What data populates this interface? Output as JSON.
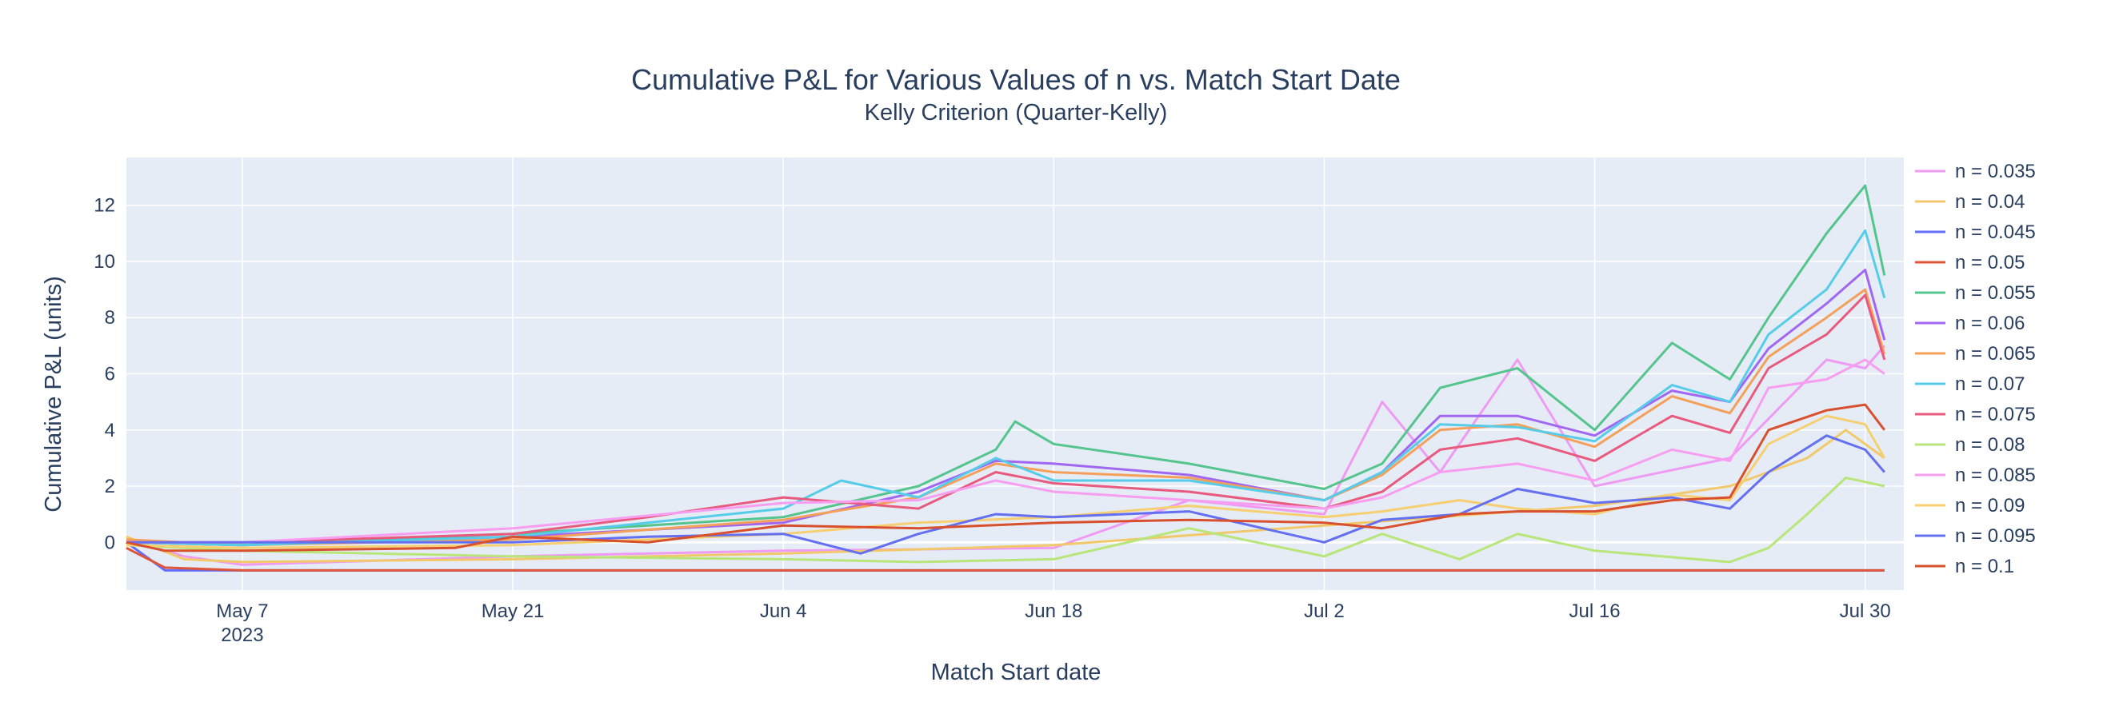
{
  "chart_data": {
    "type": "line",
    "title": "Cumulative P&L for Various Values of n vs. Match Start Date",
    "subtitle": "Kelly Criterion (Quarter-Kelly)",
    "xlabel": "Match Start date",
    "ylabel": "Cumulative P&L (units)",
    "x_range": [
      "2023-05-01",
      "2023-08-01"
    ],
    "ylim": [
      -1.7,
      13.7
    ],
    "x_ticks": [
      {
        "date": "2023-05-07",
        "label": "May 7",
        "sublabel": "2023"
      },
      {
        "date": "2023-05-21",
        "label": "May 21",
        "sublabel": ""
      },
      {
        "date": "2023-06-04",
        "label": "Jun 4",
        "sublabel": ""
      },
      {
        "date": "2023-06-18",
        "label": "Jun 18",
        "sublabel": ""
      },
      {
        "date": "2023-07-02",
        "label": "Jul 2",
        "sublabel": ""
      },
      {
        "date": "2023-07-16",
        "label": "Jul 16",
        "sublabel": ""
      },
      {
        "date": "2023-07-30",
        "label": "Jul 30",
        "sublabel": ""
      }
    ],
    "y_ticks": [
      0,
      2,
      4,
      6,
      8,
      10,
      12
    ],
    "grid": true,
    "legend_position": "right",
    "series": [
      {
        "name": "n = 0.035",
        "color": "#ef9af3",
        "points": [
          [
            "2023-05-01",
            0.1
          ],
          [
            "2023-05-04",
            -0.5
          ],
          [
            "2023-05-07",
            -0.8
          ],
          [
            "2023-05-21",
            -0.5
          ],
          [
            "2023-06-04",
            -0.3
          ],
          [
            "2023-06-18",
            -0.2
          ],
          [
            "2023-06-25",
            1.5
          ],
          [
            "2023-07-02",
            1.0
          ],
          [
            "2023-07-05",
            5.0
          ],
          [
            "2023-07-08",
            2.5
          ],
          [
            "2023-07-12",
            6.5
          ],
          [
            "2023-07-16",
            2.0
          ],
          [
            "2023-07-23",
            3.0
          ],
          [
            "2023-07-28",
            6.5
          ],
          [
            "2023-07-30",
            6.2
          ],
          [
            "2023-07-31",
            7.0
          ]
        ]
      },
      {
        "name": "n = 0.04",
        "color": "#f2c96a",
        "points": [
          [
            "2023-05-01",
            0.2
          ],
          [
            "2023-05-04",
            -0.6
          ],
          [
            "2023-05-07",
            -0.7
          ],
          [
            "2023-05-21",
            -0.6
          ],
          [
            "2023-06-04",
            -0.4
          ],
          [
            "2023-06-18",
            -0.1
          ],
          [
            "2023-07-02",
            0.6
          ],
          [
            "2023-07-16",
            1.3
          ],
          [
            "2023-07-23",
            2.0
          ],
          [
            "2023-07-27",
            3.0
          ],
          [
            "2023-07-29",
            4.0
          ],
          [
            "2023-07-31",
            3.0
          ]
        ]
      },
      {
        "name": "n = 0.045",
        "color": "#636efa",
        "points": [
          [
            "2023-05-01",
            0.0
          ],
          [
            "2023-05-03",
            -1.0
          ],
          [
            "2023-05-07",
            -1.0
          ],
          [
            "2023-05-21",
            -1.0
          ],
          [
            "2023-06-04",
            -1.0
          ],
          [
            "2023-06-18",
            -1.0
          ],
          [
            "2023-07-02",
            -1.0
          ],
          [
            "2023-07-16",
            -1.0
          ],
          [
            "2023-07-31",
            -1.0
          ]
        ]
      },
      {
        "name": "n = 0.05",
        "color": "#de553a",
        "points": [
          [
            "2023-05-01",
            -0.2
          ],
          [
            "2023-05-03",
            -0.9
          ],
          [
            "2023-05-07",
            -1.0
          ],
          [
            "2023-05-21",
            -1.0
          ],
          [
            "2023-06-04",
            -1.0
          ],
          [
            "2023-06-18",
            -1.0
          ],
          [
            "2023-07-02",
            -1.0
          ],
          [
            "2023-07-16",
            -1.0
          ],
          [
            "2023-07-31",
            -1.0
          ]
        ]
      },
      {
        "name": "n = 0.055",
        "color": "#55c48d",
        "points": [
          [
            "2023-05-01",
            0.0
          ],
          [
            "2023-05-07",
            -0.1
          ],
          [
            "2023-05-21",
            0.3
          ],
          [
            "2023-06-04",
            0.9
          ],
          [
            "2023-06-11",
            2.0
          ],
          [
            "2023-06-15",
            3.3
          ],
          [
            "2023-06-16",
            4.3
          ],
          [
            "2023-06-18",
            3.5
          ],
          [
            "2023-06-25",
            2.8
          ],
          [
            "2023-07-02",
            1.9
          ],
          [
            "2023-07-05",
            2.8
          ],
          [
            "2023-07-08",
            5.5
          ],
          [
            "2023-07-12",
            6.2
          ],
          [
            "2023-07-16",
            4.0
          ],
          [
            "2023-07-20",
            7.1
          ],
          [
            "2023-07-23",
            5.8
          ],
          [
            "2023-07-25",
            8.0
          ],
          [
            "2023-07-28",
            11.0
          ],
          [
            "2023-07-30",
            12.7
          ],
          [
            "2023-07-31",
            9.5
          ]
        ]
      },
      {
        "name": "n = 0.06",
        "color": "#a267f2",
        "points": [
          [
            "2023-05-01",
            0.0
          ],
          [
            "2023-05-07",
            -0.1
          ],
          [
            "2023-05-21",
            0.2
          ],
          [
            "2023-06-04",
            0.7
          ],
          [
            "2023-06-11",
            1.8
          ],
          [
            "2023-06-15",
            2.9
          ],
          [
            "2023-06-18",
            2.8
          ],
          [
            "2023-06-25",
            2.4
          ],
          [
            "2023-07-02",
            1.5
          ],
          [
            "2023-07-05",
            2.5
          ],
          [
            "2023-07-08",
            4.5
          ],
          [
            "2023-07-12",
            4.5
          ],
          [
            "2023-07-16",
            3.8
          ],
          [
            "2023-07-20",
            5.4
          ],
          [
            "2023-07-23",
            5.0
          ],
          [
            "2023-07-25",
            6.9
          ],
          [
            "2023-07-28",
            8.5
          ],
          [
            "2023-07-30",
            9.7
          ],
          [
            "2023-07-31",
            7.2
          ]
        ]
      },
      {
        "name": "n = 0.065",
        "color": "#f4a05a",
        "points": [
          [
            "2023-05-01",
            0.1
          ],
          [
            "2023-05-07",
            -0.1
          ],
          [
            "2023-05-21",
            0.1
          ],
          [
            "2023-06-04",
            0.8
          ],
          [
            "2023-06-11",
            1.6
          ],
          [
            "2023-06-15",
            2.8
          ],
          [
            "2023-06-18",
            2.5
          ],
          [
            "2023-06-25",
            2.3
          ],
          [
            "2023-07-02",
            1.5
          ],
          [
            "2023-07-05",
            2.4
          ],
          [
            "2023-07-08",
            4.0
          ],
          [
            "2023-07-12",
            4.2
          ],
          [
            "2023-07-16",
            3.4
          ],
          [
            "2023-07-20",
            5.2
          ],
          [
            "2023-07-23",
            4.6
          ],
          [
            "2023-07-25",
            6.6
          ],
          [
            "2023-07-28",
            8.0
          ],
          [
            "2023-07-30",
            9.0
          ],
          [
            "2023-07-31",
            6.7
          ]
        ]
      },
      {
        "name": "n = 0.07",
        "color": "#56cce8",
        "points": [
          [
            "2023-05-01",
            0.0
          ],
          [
            "2023-05-07",
            -0.1
          ],
          [
            "2023-05-21",
            0.2
          ],
          [
            "2023-06-04",
            1.2
          ],
          [
            "2023-06-07",
            2.2
          ],
          [
            "2023-06-11",
            1.6
          ],
          [
            "2023-06-15",
            3.0
          ],
          [
            "2023-06-18",
            2.2
          ],
          [
            "2023-06-25",
            2.2
          ],
          [
            "2023-07-02",
            1.5
          ],
          [
            "2023-07-05",
            2.5
          ],
          [
            "2023-07-08",
            4.2
          ],
          [
            "2023-07-12",
            4.1
          ],
          [
            "2023-07-16",
            3.6
          ],
          [
            "2023-07-20",
            5.6
          ],
          [
            "2023-07-23",
            5.0
          ],
          [
            "2023-07-25",
            7.4
          ],
          [
            "2023-07-28",
            9.0
          ],
          [
            "2023-07-30",
            11.1
          ],
          [
            "2023-07-31",
            8.7
          ]
        ]
      },
      {
        "name": "n = 0.075",
        "color": "#e85a7e",
        "points": [
          [
            "2023-05-01",
            0.0
          ],
          [
            "2023-05-07",
            0.0
          ],
          [
            "2023-05-21",
            0.3
          ],
          [
            "2023-05-28",
            0.9
          ],
          [
            "2023-06-04",
            1.6
          ],
          [
            "2023-06-11",
            1.2
          ],
          [
            "2023-06-15",
            2.5
          ],
          [
            "2023-06-18",
            2.1
          ],
          [
            "2023-06-25",
            1.8
          ],
          [
            "2023-07-02",
            1.2
          ],
          [
            "2023-07-05",
            1.8
          ],
          [
            "2023-07-08",
            3.3
          ],
          [
            "2023-07-12",
            3.7
          ],
          [
            "2023-07-16",
            2.9
          ],
          [
            "2023-07-20",
            4.5
          ],
          [
            "2023-07-23",
            3.9
          ],
          [
            "2023-07-25",
            6.2
          ],
          [
            "2023-07-28",
            7.4
          ],
          [
            "2023-07-30",
            8.8
          ],
          [
            "2023-07-31",
            6.5
          ]
        ]
      },
      {
        "name": "n = 0.08",
        "color": "#b8e67a",
        "points": [
          [
            "2023-05-01",
            -0.1
          ],
          [
            "2023-05-07",
            -0.3
          ],
          [
            "2023-05-21",
            -0.5
          ],
          [
            "2023-06-04",
            -0.6
          ],
          [
            "2023-06-11",
            -0.7
          ],
          [
            "2023-06-18",
            -0.6
          ],
          [
            "2023-06-25",
            0.5
          ],
          [
            "2023-07-02",
            -0.5
          ],
          [
            "2023-07-05",
            0.3
          ],
          [
            "2023-07-09",
            -0.6
          ],
          [
            "2023-07-12",
            0.3
          ],
          [
            "2023-07-16",
            -0.3
          ],
          [
            "2023-07-23",
            -0.7
          ],
          [
            "2023-07-25",
            -0.2
          ],
          [
            "2023-07-27",
            1.0
          ],
          [
            "2023-07-29",
            2.3
          ],
          [
            "2023-07-31",
            2.0
          ]
        ]
      },
      {
        "name": "n = 0.085",
        "color": "#f79ef0",
        "points": [
          [
            "2023-05-01",
            0.0
          ],
          [
            "2023-05-07",
            0.0
          ],
          [
            "2023-05-21",
            0.5
          ],
          [
            "2023-06-04",
            1.4
          ],
          [
            "2023-06-11",
            1.5
          ],
          [
            "2023-06-15",
            2.2
          ],
          [
            "2023-06-18",
            1.8
          ],
          [
            "2023-06-25",
            1.5
          ],
          [
            "2023-07-02",
            1.2
          ],
          [
            "2023-07-05",
            1.6
          ],
          [
            "2023-07-08",
            2.5
          ],
          [
            "2023-07-12",
            2.8
          ],
          [
            "2023-07-16",
            2.2
          ],
          [
            "2023-07-20",
            3.3
          ],
          [
            "2023-07-23",
            2.9
          ],
          [
            "2023-07-25",
            5.5
          ],
          [
            "2023-07-28",
            5.8
          ],
          [
            "2023-07-30",
            6.5
          ],
          [
            "2023-07-31",
            6.0
          ]
        ]
      },
      {
        "name": "n = 0.09",
        "color": "#f6cf72",
        "points": [
          [
            "2023-05-01",
            -0.1
          ],
          [
            "2023-05-07",
            -0.2
          ],
          [
            "2023-05-21",
            -0.1
          ],
          [
            "2023-06-04",
            0.3
          ],
          [
            "2023-06-11",
            0.7
          ],
          [
            "2023-06-18",
            0.9
          ],
          [
            "2023-06-25",
            1.3
          ],
          [
            "2023-07-02",
            0.9
          ],
          [
            "2023-07-05",
            1.1
          ],
          [
            "2023-07-09",
            1.5
          ],
          [
            "2023-07-12",
            1.2
          ],
          [
            "2023-07-16",
            1.0
          ],
          [
            "2023-07-20",
            1.7
          ],
          [
            "2023-07-23",
            1.5
          ],
          [
            "2023-07-25",
            3.5
          ],
          [
            "2023-07-28",
            4.5
          ],
          [
            "2023-07-30",
            4.2
          ],
          [
            "2023-07-31",
            3.0
          ]
        ]
      },
      {
        "name": "n = 0.095",
        "color": "#6470f0",
        "points": [
          [
            "2023-05-01",
            0.0
          ],
          [
            "2023-05-07",
            0.0
          ],
          [
            "2023-05-21",
            0.0
          ],
          [
            "2023-05-28",
            0.2
          ],
          [
            "2023-06-04",
            0.3
          ],
          [
            "2023-06-08",
            -0.4
          ],
          [
            "2023-06-11",
            0.3
          ],
          [
            "2023-06-15",
            1.0
          ],
          [
            "2023-06-18",
            0.9
          ],
          [
            "2023-06-25",
            1.1
          ],
          [
            "2023-07-02",
            0.0
          ],
          [
            "2023-07-05",
            0.8
          ],
          [
            "2023-07-09",
            1.0
          ],
          [
            "2023-07-12",
            1.9
          ],
          [
            "2023-07-16",
            1.4
          ],
          [
            "2023-07-20",
            1.6
          ],
          [
            "2023-07-23",
            1.2
          ],
          [
            "2023-07-25",
            2.5
          ],
          [
            "2023-07-28",
            3.8
          ],
          [
            "2023-07-30",
            3.3
          ],
          [
            "2023-07-31",
            2.5
          ]
        ]
      },
      {
        "name": "n = 0.1",
        "color": "#d9502f",
        "points": [
          [
            "2023-05-01",
            0.0
          ],
          [
            "2023-05-03",
            -0.3
          ],
          [
            "2023-05-07",
            -0.3
          ],
          [
            "2023-05-18",
            -0.2
          ],
          [
            "2023-05-21",
            0.2
          ],
          [
            "2023-05-28",
            0.0
          ],
          [
            "2023-06-04",
            0.6
          ],
          [
            "2023-06-11",
            0.5
          ],
          [
            "2023-06-18",
            0.7
          ],
          [
            "2023-06-25",
            0.8
          ],
          [
            "2023-07-02",
            0.7
          ],
          [
            "2023-07-05",
            0.5
          ],
          [
            "2023-07-09",
            1.0
          ],
          [
            "2023-07-12",
            1.1
          ],
          [
            "2023-07-16",
            1.1
          ],
          [
            "2023-07-20",
            1.5
          ],
          [
            "2023-07-23",
            1.6
          ],
          [
            "2023-07-25",
            4.0
          ],
          [
            "2023-07-28",
            4.7
          ],
          [
            "2023-07-30",
            4.9
          ],
          [
            "2023-07-31",
            4.0
          ]
        ]
      }
    ]
  }
}
